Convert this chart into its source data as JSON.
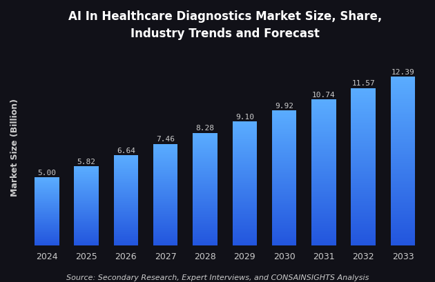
{
  "title": "AI In Healthcare Diagnostics Market Size, Share,\nIndustry Trends and Forecast",
  "ylabel": "Market Size (Billion)",
  "source_text": "Source: Secondary Research, Expert Interviews, and CONSAINSIGHTS Analysis",
  "categories": [
    "2024",
    "2025",
    "2026",
    "2027",
    "2028",
    "2029",
    "2030",
    "2031",
    "2032",
    "2033"
  ],
  "values": [
    5.0,
    5.82,
    6.64,
    7.46,
    8.28,
    9.1,
    9.92,
    10.74,
    11.57,
    12.39
  ],
  "bar_color_top": "#5aacff",
  "bar_color_bottom": "#2255dd",
  "background_color": "#111118",
  "text_color": "#cccccc",
  "title_color": "#ffffff",
  "title_fontsize": 12,
  "label_fontsize": 9,
  "value_fontsize": 8,
  "ylabel_fontsize": 9,
  "source_fontsize": 8,
  "ylim": [
    0,
    14.5
  ]
}
